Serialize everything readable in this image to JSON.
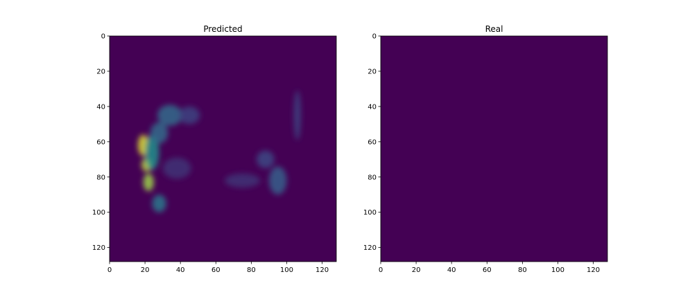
{
  "chart_data": [
    {
      "type": "heatmap",
      "title": "Predicted",
      "xlabel": "",
      "ylabel": "",
      "xlim": [
        0,
        128
      ],
      "ylim": [
        128,
        0
      ],
      "xticks": [
        0,
        20,
        40,
        60,
        80,
        100,
        120
      ],
      "yticks": [
        0,
        20,
        40,
        60,
        80,
        100,
        120
      ],
      "colormap": "viridis",
      "background_color": "#440154",
      "intensity_regions": [
        {
          "x": 19,
          "y": 62,
          "rx": 3,
          "ry": 6,
          "value": 0.95
        },
        {
          "x": 21,
          "y": 73,
          "rx": 3,
          "ry": 4,
          "value": 0.9
        },
        {
          "x": 22,
          "y": 83,
          "rx": 3,
          "ry": 5,
          "value": 0.85
        },
        {
          "x": 24,
          "y": 66,
          "rx": 4,
          "ry": 10,
          "value": 0.5
        },
        {
          "x": 28,
          "y": 95,
          "rx": 4,
          "ry": 5,
          "value": 0.4
        },
        {
          "x": 34,
          "y": 45,
          "rx": 7,
          "ry": 6,
          "value": 0.35
        },
        {
          "x": 28,
          "y": 55,
          "rx": 5,
          "ry": 6,
          "value": 0.35
        },
        {
          "x": 45,
          "y": 45,
          "rx": 6,
          "ry": 5,
          "value": 0.2
        },
        {
          "x": 95,
          "y": 82,
          "rx": 5,
          "ry": 8,
          "value": 0.3
        },
        {
          "x": 88,
          "y": 70,
          "rx": 5,
          "ry": 5,
          "value": 0.22
        },
        {
          "x": 75,
          "y": 82,
          "rx": 10,
          "ry": 4,
          "value": 0.15
        },
        {
          "x": 106,
          "y": 45,
          "rx": 2,
          "ry": 14,
          "value": 0.2
        },
        {
          "x": 38,
          "y": 75,
          "rx": 8,
          "ry": 6,
          "value": 0.15
        }
      ]
    },
    {
      "type": "heatmap",
      "title": "Real",
      "xlabel": "",
      "ylabel": "",
      "xlim": [
        0,
        128
      ],
      "ylim": [
        128,
        0
      ],
      "xticks": [
        0,
        20,
        40,
        60,
        80,
        100,
        120
      ],
      "yticks": [
        0,
        20,
        40,
        60,
        80,
        100,
        120
      ],
      "colormap": "viridis",
      "background_color": "#440154",
      "intensity_regions": []
    }
  ]
}
